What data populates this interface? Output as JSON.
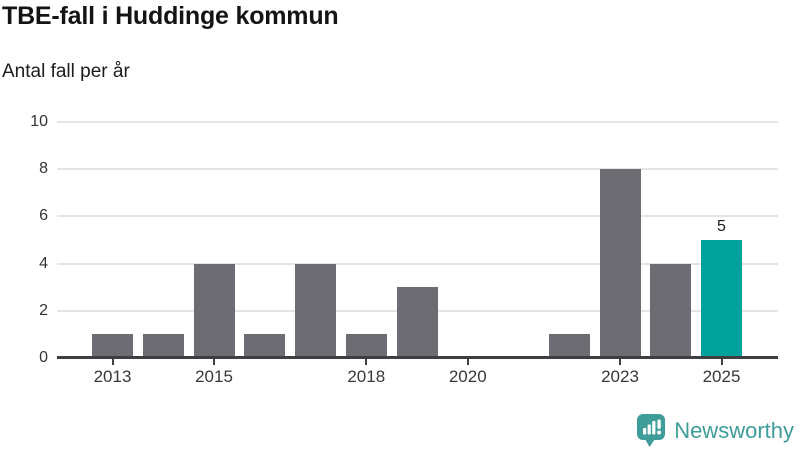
{
  "header": {
    "title": "TBE-fall i Huddinge kommun",
    "subtitle": "Antal fall per år"
  },
  "chart_data": {
    "type": "bar",
    "title": "TBE-fall i Huddinge kommun",
    "ylabel": "Antal fall per år",
    "xlabel": "",
    "categories": [
      2013,
      2014,
      2015,
      2016,
      2017,
      2018,
      2019,
      2020,
      2021,
      2022,
      2023,
      2024,
      2025
    ],
    "values": [
      1,
      1,
      4,
      1,
      4,
      1,
      3,
      0,
      0,
      1,
      8,
      4,
      5
    ],
    "ylim": [
      0,
      10
    ],
    "yticks": [
      0,
      2,
      4,
      6,
      8,
      10
    ],
    "xticks": [
      2013,
      2015,
      2018,
      2020,
      2023,
      2025
    ],
    "grid": true,
    "highlight_index": 12,
    "highlight_label": "5",
    "bar_color": "#6C6C72",
    "highlight_color": "#00A39B"
  },
  "footer": {
    "brand": "Newsworthy",
    "brand_color": "#3F9D99",
    "logo_icon": "bar-chart-speech-bubble-icon"
  }
}
